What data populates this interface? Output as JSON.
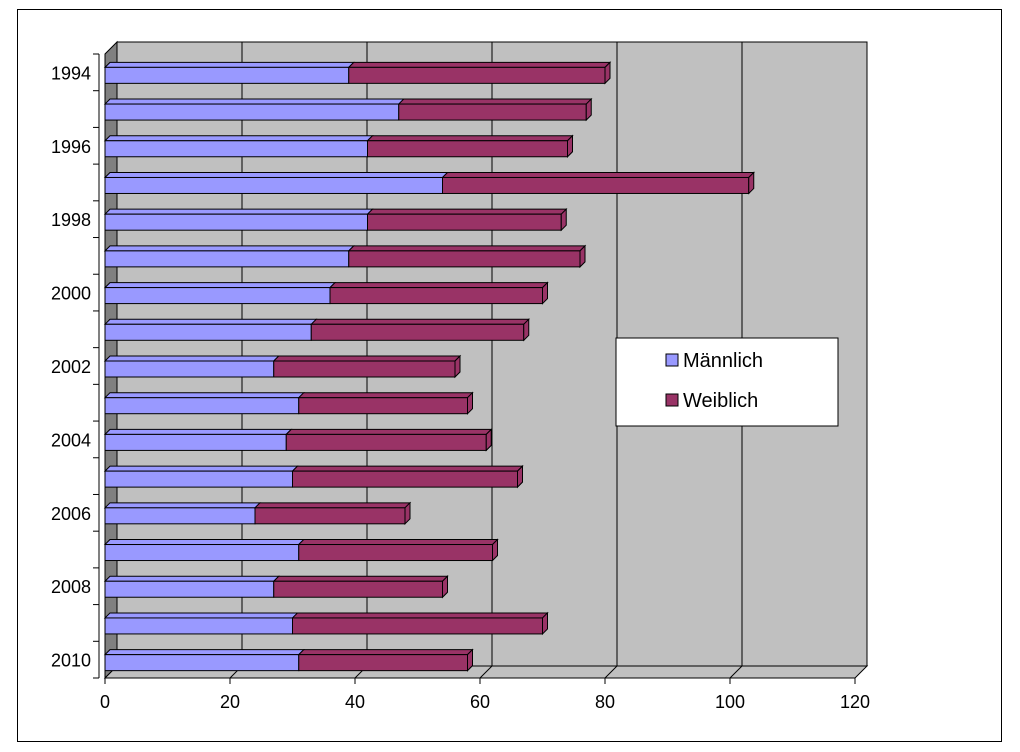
{
  "chart_data": {
    "type": "bar",
    "orientation": "horizontal",
    "stacked": true,
    "style": "3d",
    "title": "",
    "xlabel": "",
    "ylabel": "",
    "categories": [
      "1994",
      "1995",
      "1996",
      "1997",
      "1998",
      "1999",
      "2000",
      "2001",
      "2002",
      "2003",
      "2004",
      "2005",
      "2006",
      "2007",
      "2008",
      "2009",
      "2010"
    ],
    "category_tick_labels": [
      "1994",
      "",
      "1996",
      "",
      "1998",
      "",
      "2000",
      "",
      "2002",
      "",
      "2004",
      "",
      "2006",
      "",
      "2008",
      "",
      "2010"
    ],
    "series": [
      {
        "name": "Männlich",
        "color": "#9999ff",
        "values": [
          39,
          47,
          42,
          54,
          42,
          39,
          36,
          33,
          27,
          31,
          29,
          30,
          24,
          31,
          27,
          30,
          31
        ]
      },
      {
        "name": "Weiblich",
        "color": "#993366",
        "values": [
          41,
          30,
          32,
          49,
          31,
          37,
          34,
          34,
          29,
          27,
          32,
          36,
          24,
          31,
          27,
          40,
          27
        ]
      }
    ],
    "xlim": [
      0,
      120
    ],
    "x_ticks": [
      "0",
      "20",
      "40",
      "60",
      "80",
      "100",
      "120"
    ],
    "grid": true,
    "legend_position": "right",
    "colors": {
      "wall": "#c0c0c0",
      "side_wall": "#808080",
      "floor": "#c0c0c0"
    }
  }
}
